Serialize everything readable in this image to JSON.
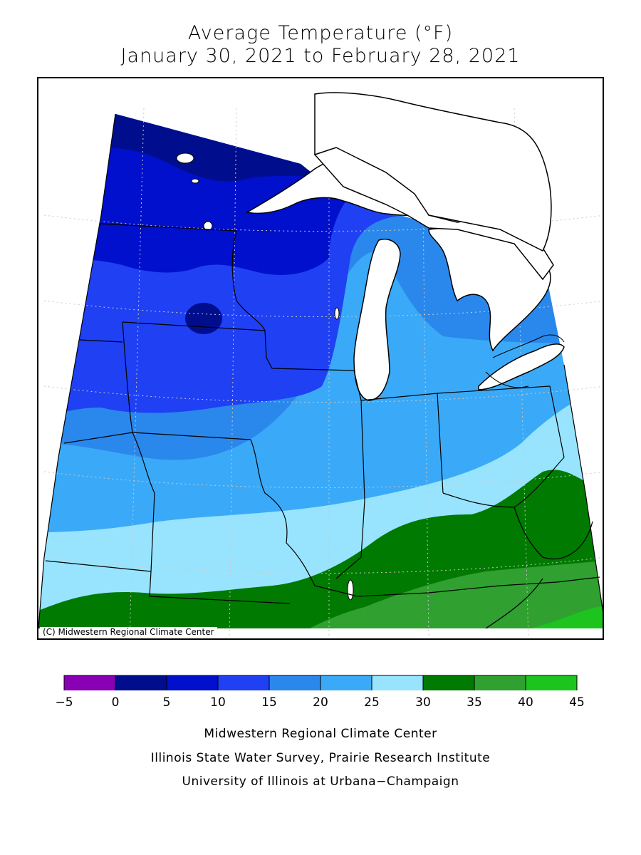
{
  "title_line1": "Average Temperature (°F)",
  "title_line2": "January 30, 2021 to February 28, 2021",
  "copyright": "(C) Midwestern Regional Climate Center",
  "legend": {
    "bins": [
      {
        "min": -5,
        "max": 0,
        "color": "#8a00b4"
      },
      {
        "min": 0,
        "max": 5,
        "color": "#000e8e"
      },
      {
        "min": 5,
        "max": 10,
        "color": "#0010cc"
      },
      {
        "min": 10,
        "max": 15,
        "color": "#2040f4"
      },
      {
        "min": 15,
        "max": 20,
        "color": "#2a88ec"
      },
      {
        "min": 20,
        "max": 25,
        "color": "#3aaaf8"
      },
      {
        "min": 25,
        "max": 30,
        "color": "#98e4fe"
      },
      {
        "min": 30,
        "max": 35,
        "color": "#007a00"
      },
      {
        "min": 35,
        "max": 40,
        "color": "#30a030"
      },
      {
        "min": 40,
        "max": 45,
        "color": "#1ec41e"
      }
    ],
    "tick_labels": [
      "−5",
      "0",
      "5",
      "10",
      "15",
      "20",
      "25",
      "30",
      "35",
      "40",
      "45"
    ]
  },
  "credits": [
    "Midwestern Regional Climate Center",
    "Illinois State Water Survey, Prairie Research Institute",
    "University of Illinois at Urbana−Champaign"
  ]
}
